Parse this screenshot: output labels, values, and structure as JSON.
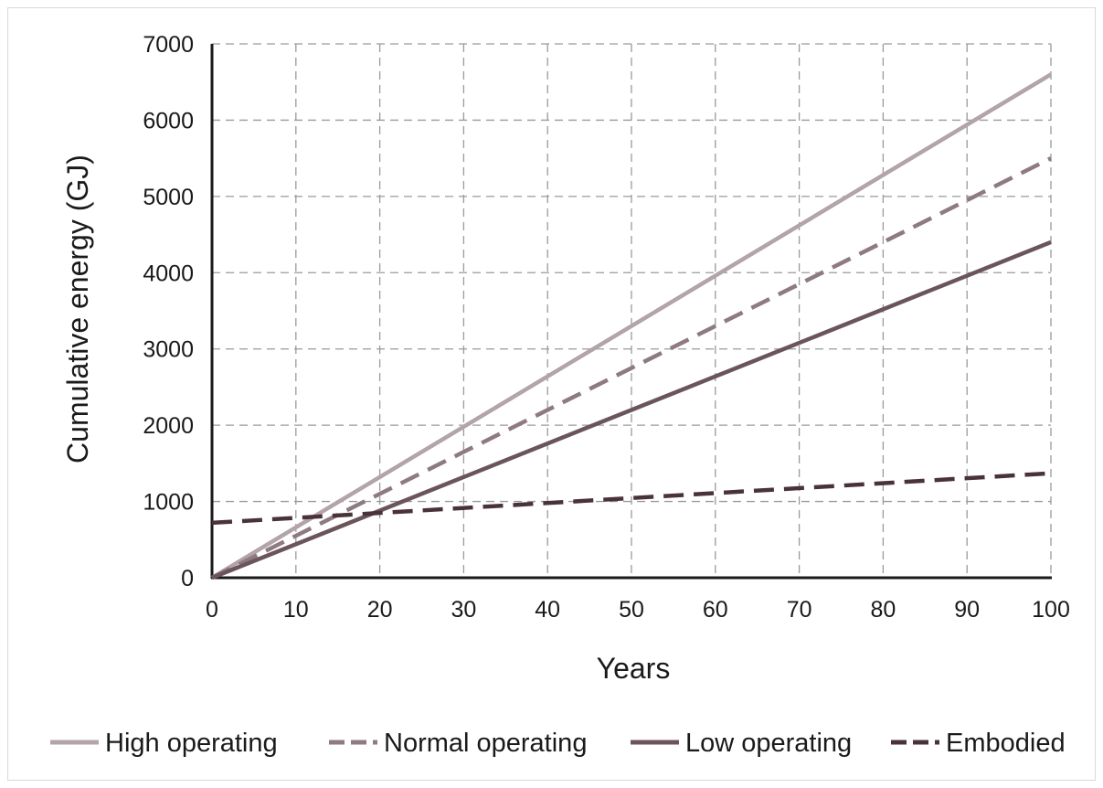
{
  "chart_data": {
    "type": "line",
    "title": "",
    "xlabel": "Years",
    "ylabel": "Cumulative energy (GJ)",
    "xlim": [
      0,
      100
    ],
    "ylim": [
      0,
      7000
    ],
    "x_ticks": [
      0,
      10,
      20,
      30,
      40,
      50,
      60,
      70,
      80,
      90,
      100
    ],
    "y_ticks": [
      0,
      1000,
      2000,
      3000,
      4000,
      5000,
      6000,
      7000
    ],
    "grid": true,
    "legend_position": "bottom",
    "series": [
      {
        "name": "High operating",
        "x": [
          0,
          100
        ],
        "y": [
          0,
          6600
        ],
        "color": "#b3a4a9",
        "dash": "solid"
      },
      {
        "name": "Normal operating",
        "x": [
          0,
          100
        ],
        "y": [
          0,
          5500
        ],
        "color": "#8e7b80",
        "dash": "dashed"
      },
      {
        "name": "Low operating",
        "x": [
          0,
          100
        ],
        "y": [
          0,
          4400
        ],
        "color": "#6b545a",
        "dash": "solid"
      },
      {
        "name": "Embodied",
        "x": [
          0,
          100
        ],
        "y": [
          720,
          1370
        ],
        "color": "#4a3338",
        "dash": "dashed"
      }
    ]
  }
}
